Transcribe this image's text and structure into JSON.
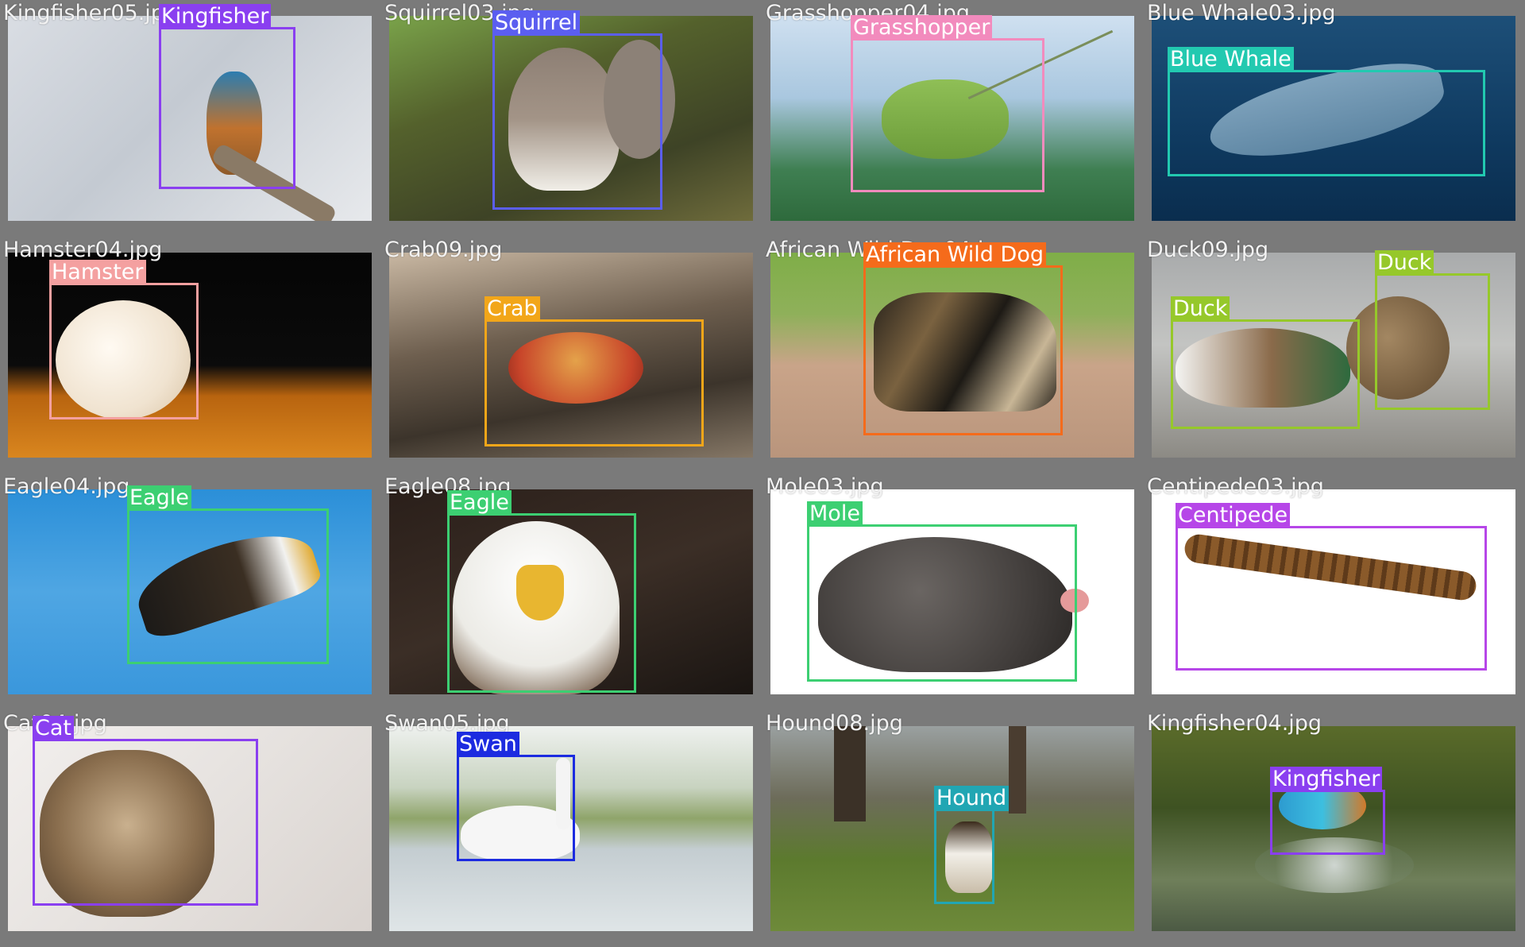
{
  "cells": [
    {
      "filename": "Kingfisher05.jpg",
      "bg": "linear-gradient(135deg,#d9dde3 0%,#c4cad2 45%,#e7e9ec 100%)",
      "detections": [
        {
          "label": "Kingfisher",
          "color": "#8a3ff0"
        }
      ]
    },
    {
      "filename": "Squirrel03.jpg",
      "bg": "linear-gradient(160deg,#7aa34a 0%,#54612c 35%,#3e4326 70%,#6f6c3c 100%)",
      "detections": [
        {
          "label": "Squirrel",
          "color": "#5b5ef0"
        }
      ]
    },
    {
      "filename": "Grasshopper04.jpg",
      "bg": "linear-gradient(180deg,#cfe0f0 0%,#a9c7df 40%,#3f7f52 75%,#2e6a3c 100%)",
      "detections": [
        {
          "label": "Grasshopper",
          "color": "#f28bbd"
        }
      ]
    },
    {
      "filename": "Blue Whale03.jpg",
      "bg": "linear-gradient(180deg,#1d4f78 0%,#0f3a60 60%,#0a2d4e 100%)",
      "detections": [
        {
          "label": "Blue Whale",
          "color": "#22c9b0"
        }
      ]
    },
    {
      "filename": "Hamster04.jpg",
      "bg": "linear-gradient(180deg,#050505 0%,#0b0b0b 55%,#b8640f 70%,#d9861f 100%)",
      "detections": [
        {
          "label": "Hamster",
          "color": "#f4a0a0"
        }
      ]
    },
    {
      "filename": "Crab09.jpg",
      "bg": "linear-gradient(170deg,#c9b8a3 0%,#6e5f4f 40%,#3c342b 70%,#857766 100%)",
      "detections": [
        {
          "label": "Crab",
          "color": "#f2a619"
        }
      ]
    },
    {
      "filename": "African Wild Dog04.jpg",
      "bg": "linear-gradient(180deg,#7fae48 0%,#8fb05a 30%,#c9a489 55%,#b9957c 100%)",
      "detections": [
        {
          "label": "African Wild Dog",
          "color": "#f56b1b"
        }
      ]
    },
    {
      "filename": "Duck09.jpg",
      "bg": "linear-gradient(180deg,#a9abac 0%,#c3c4c2 45%,#8c8a84 100%)",
      "detections": [
        {
          "label": "Duck",
          "color": "#96c82a"
        },
        {
          "label": "Duck",
          "color": "#96c82a"
        }
      ]
    },
    {
      "filename": "Eagle04.jpg",
      "bg": "linear-gradient(180deg,#2b8fd8 0%,#4fa6e3 50%,#3a97dc 100%)",
      "detections": [
        {
          "label": "Eagle",
          "color": "#3ccf72"
        }
      ]
    },
    {
      "filename": "Eagle08.jpg",
      "bg": "linear-gradient(160deg,#2a1f1a 0%,#3b2e26 50%,#1a1512 100%)",
      "detections": [
        {
          "label": "Eagle",
          "color": "#3ccf72"
        }
      ]
    },
    {
      "filename": "Mole03.jpg",
      "bg": "#ffffff",
      "detections": [
        {
          "label": "Mole",
          "color": "#3ccf72"
        }
      ]
    },
    {
      "filename": "Centipede03.jpg",
      "bg": "#ffffff",
      "detections": [
        {
          "label": "Centipede",
          "color": "#b646e8"
        }
      ]
    },
    {
      "filename": "Cat04.jpg",
      "bg": "linear-gradient(135deg,#f2efed 0%,#e6e2df 50%,#d9d3cf 100%)",
      "detections": [
        {
          "label": "Cat",
          "color": "#8a3ff0"
        }
      ]
    },
    {
      "filename": "Swan05.jpg",
      "bg": "linear-gradient(180deg,#eef1ee 0%,#c8d3c0 30%,#8fa46a 45%,#c4cdd1 60%,#dfe5e7 100%)",
      "detections": [
        {
          "label": "Swan",
          "color": "#1c2be0"
        }
      ]
    },
    {
      "filename": "Hound08.jpg",
      "bg": "linear-gradient(180deg,#9aa0a0 0%,#6d6c5a 35%,#5c7a2e 65%,#6e8a3a 100%)",
      "detections": [
        {
          "label": "Hound",
          "color": "#21a6b3"
        }
      ]
    },
    {
      "filename": "Kingfisher04.jpg",
      "bg": "linear-gradient(180deg,#5a6b2a 0%,#3e5222 40%,#6f7f5a 75%,#4c5a44 100%)",
      "detections": [
        {
          "label": "Kingfisher",
          "color": "#8a3ff0"
        }
      ]
    }
  ]
}
